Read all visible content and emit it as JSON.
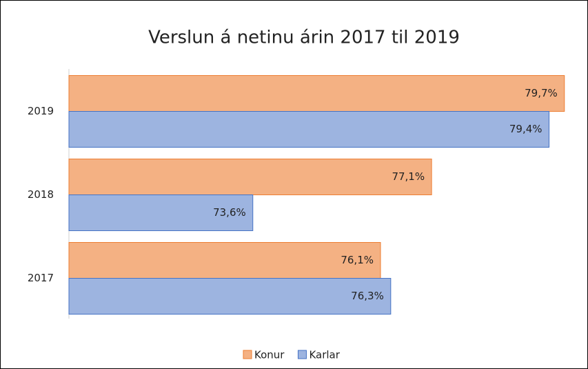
{
  "chart_data": {
    "type": "barh",
    "title": "Verslun á netinu árin 2017 til 2019",
    "categories": [
      "2017",
      "2018",
      "2019"
    ],
    "series": [
      {
        "name": "Konur",
        "color": "#f4b183",
        "edgecolor": "#ed7d31",
        "values": [
          76.1,
          77.1,
          79.7
        ],
        "value_labels": [
          "76,1%",
          "77,1%",
          "79,7%"
        ]
      },
      {
        "name": "Karlar",
        "color": "#9db4e0",
        "edgecolor": "#4472c4",
        "values": [
          76.3,
          73.6,
          79.4
        ],
        "value_labels": [
          "76,3%",
          "73,6%",
          "79,4%"
        ]
      }
    ],
    "xlim": [
      70,
      80
    ],
    "legend": "bottom"
  }
}
